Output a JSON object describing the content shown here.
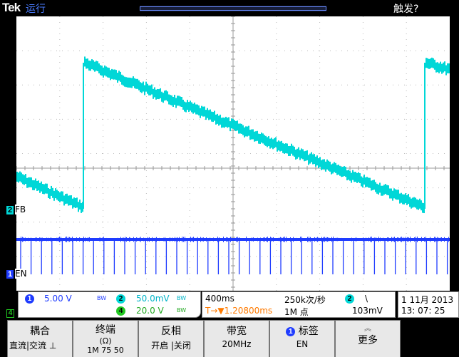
{
  "header": {
    "brand": "Tek",
    "run_state": "运行",
    "trigger_state": "触发?"
  },
  "markers": {
    "ch2_number": "2",
    "ch2_label": "FB",
    "ch1_number": "1",
    "ch1_label": "EN",
    "ch4_number": "4",
    "trigger_position": "T"
  },
  "readout": {
    "ch1": {
      "number": "1",
      "scale": "5.00 V",
      "bw_symbol": "BW"
    },
    "ch2": {
      "number": "2",
      "scale": "50.0mV",
      "bw_symbol": "BW"
    },
    "ch4": {
      "number": "4",
      "scale": "20.0 V",
      "bw_symbol": "BW"
    },
    "timebase": "400ms",
    "sample_rate": "250k次/秒",
    "delay": "T→▼1.20800ms",
    "record_length": "1M 点",
    "trigger_source": "2",
    "trigger_slope": "\\",
    "trigger_level": "103mV",
    "date": "1 11月 2013",
    "time": "13: 07: 25"
  },
  "colors": {
    "ch1": "#1f3cff",
    "ch2": "#00d7d7",
    "ch4": "#22c822",
    "trigger": "#ff8a00"
  },
  "menu": [
    {
      "title": "耦合",
      "sub": "直流|交流 ⊥"
    },
    {
      "title": "终端",
      "sub": "(Ω)",
      "sub2": "1M 75 50"
    },
    {
      "title": "反相",
      "sub": "开启 |关闭"
    },
    {
      "title": "带宽",
      "sub": "20MHz"
    },
    {
      "title": "标签",
      "sub": "EN",
      "badge": "1"
    },
    {
      "title": "更多",
      "sub": ""
    }
  ]
}
